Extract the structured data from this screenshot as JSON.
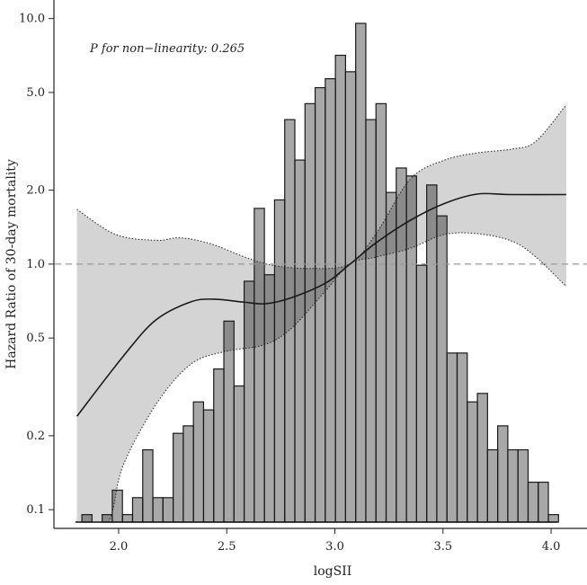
{
  "chart_data": {
    "type": "line",
    "title": "",
    "xlabel": "logSII",
    "ylabel": "Hazard Ratio of 30-day mortality",
    "annotation": "P for non−linearity: 0.265",
    "xlim": [
      1.705,
      4.166
    ],
    "ylim": [
      0.089,
      11.9
    ],
    "y_scale": "log",
    "x_ticks": [
      "2.0",
      "2.5",
      "3.0",
      "3.5",
      "4.0"
    ],
    "y_ticks": [
      "10.0",
      "5.0",
      "2.0",
      "1.0",
      "0.5",
      "0.2",
      "0.1"
    ],
    "reference_line": {
      "y": 1.0,
      "style": "dashed",
      "color": "#999999"
    },
    "grid": false,
    "estimate": {
      "x": [
        1.807,
        2.02,
        2.17,
        2.33,
        2.44,
        2.58,
        2.68,
        2.8,
        2.96,
        3.07,
        3.19,
        3.35,
        3.51,
        3.66,
        3.81,
        4.07
      ],
      "y": [
        0.24,
        0.42,
        0.59,
        0.7,
        0.72,
        0.7,
        0.69,
        0.73,
        0.84,
        1.0,
        1.22,
        1.51,
        1.77,
        1.93,
        1.92,
        1.92
      ]
    },
    "ci_upper": {
      "x": [
        1.807,
        1.987,
        2.175,
        2.285,
        2.426,
        2.582,
        2.708,
        2.88,
        3.068,
        3.193,
        3.349,
        3.506,
        3.662,
        3.819,
        3.929,
        4.07
      ],
      "y": [
        1.67,
        1.32,
        1.25,
        1.28,
        1.21,
        1.07,
        0.99,
        0.96,
        1.0,
        1.34,
        2.22,
        2.65,
        2.84,
        2.94,
        3.16,
        4.45
      ]
    },
    "ci_lower": {
      "x": [
        1.807,
        1.956,
        2.019,
        2.175,
        2.332,
        2.488,
        2.676,
        2.801,
        2.958,
        3.068,
        3.193,
        3.349,
        3.506,
        3.662,
        3.819,
        3.929,
        4.07
      ],
      "y": [
        0.05,
        0.089,
        0.15,
        0.27,
        0.39,
        0.44,
        0.47,
        0.55,
        0.78,
        1.0,
        1.07,
        1.16,
        1.32,
        1.33,
        1.24,
        1.07,
        0.81
      ]
    },
    "histogram": {
      "bin_width": 0.0469,
      "first_bin_left": 1.83,
      "relative_heights": [
        1.5,
        0,
        1.5,
        6.4,
        1.5,
        4.9,
        14.5,
        4.9,
        4.9,
        17.8,
        19.3,
        24.1,
        22.5,
        30.7,
        40.3,
        27.3,
        48.3,
        62.9,
        49.6,
        64.6,
        80.7,
        72.6,
        83.9,
        87.1,
        88.9,
        93.6,
        90.3,
        100,
        80.7,
        83.9,
        66.1,
        71.0,
        69.4,
        51.5,
        67.6,
        61.4,
        33.9,
        33.9,
        24.1,
        25.8,
        14.5,
        19.3,
        14.5,
        14.5,
        8.0,
        8.0,
        1.5
      ]
    },
    "colors": {
      "line": "#1a1a1a",
      "band": "rgba(0,0,0,0.17)",
      "bars": "rgba(0,0,0,0.34)",
      "bar_outline": "#1a1a1a"
    }
  }
}
